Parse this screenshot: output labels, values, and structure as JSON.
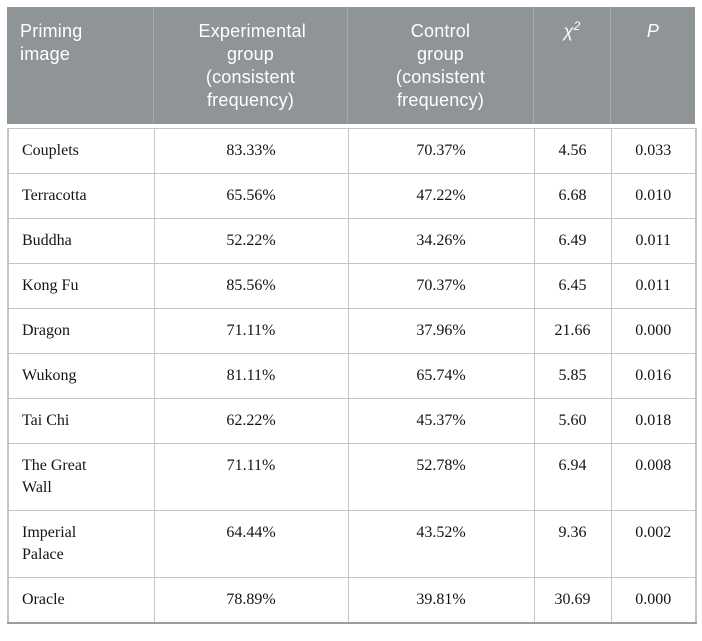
{
  "theme": {
    "colors": {
      "header-bg": "#8f9496",
      "header-text": "#ffffff",
      "header-sep": "#a4a9ab",
      "border": "#c2c5c6",
      "bottom-rule": "#999e9f",
      "body-text": "#141414",
      "page-bg": "#ffffff"
    }
  },
  "table": {
    "header": {
      "priming_image": "Priming image",
      "experimental": "Experimental group (consistent frequency)",
      "control": "Control group (consistent frequency)",
      "chi_symbol": "χ",
      "chi_sup": "2",
      "p": "P"
    },
    "rows": [
      {
        "name": "Couplets",
        "exp": "83.33%",
        "ctrl": "70.37%",
        "chi2": "4.56",
        "p": "0.033"
      },
      {
        "name": "Terracotta",
        "exp": "65.56%",
        "ctrl": "47.22%",
        "chi2": "6.68",
        "p": "0.010"
      },
      {
        "name": "Buddha",
        "exp": "52.22%",
        "ctrl": "34.26%",
        "chi2": "6.49",
        "p": "0.011"
      },
      {
        "name": "Kong Fu",
        "exp": "85.56%",
        "ctrl": "70.37%",
        "chi2": "6.45",
        "p": "0.011"
      },
      {
        "name": "Dragon",
        "exp": "71.11%",
        "ctrl": "37.96%",
        "chi2": "21.66",
        "p": "0.000"
      },
      {
        "name": "Wukong",
        "exp": "81.11%",
        "ctrl": "65.74%",
        "chi2": "5.85",
        "p": "0.016"
      },
      {
        "name": "Tai Chi",
        "exp": "62.22%",
        "ctrl": "45.37%",
        "chi2": "5.60",
        "p": "0.018"
      },
      {
        "name": "The Great Wall",
        "exp": "71.11%",
        "ctrl": "52.78%",
        "chi2": "6.94",
        "p": "0.008"
      },
      {
        "name": "Imperial Palace",
        "exp": "64.44%",
        "ctrl": "43.52%",
        "chi2": "9.36",
        "p": "0.002"
      },
      {
        "name": "Oracle",
        "exp": "78.89%",
        "ctrl": "39.81%",
        "chi2": "30.69",
        "p": "0.000"
      }
    ]
  }
}
